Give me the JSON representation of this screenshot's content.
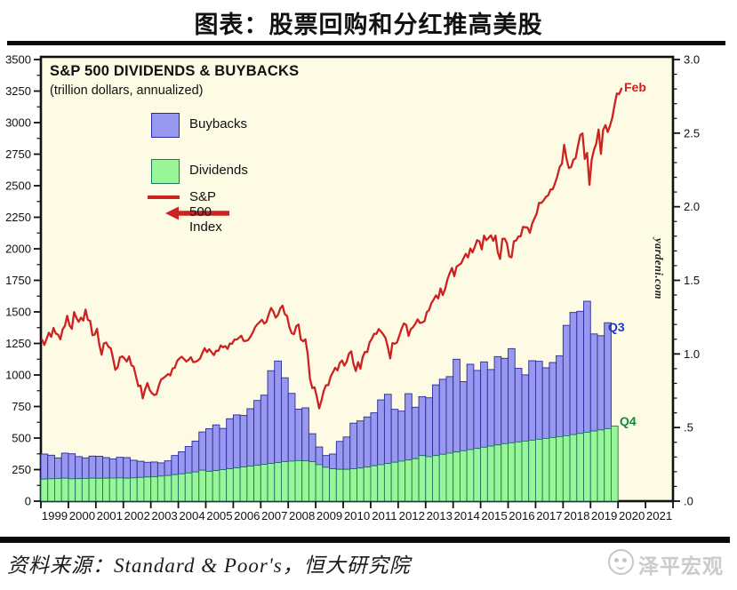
{
  "page": {
    "title": "图表：股票回购和分红推高美股",
    "source_line": "资料来源：Standard & Poor's，恒大研究院",
    "watermark": "泽平宏观"
  },
  "chart_data": {
    "type": "bar",
    "subtype": "stacked-bars-with-line",
    "title": "S&P 500 DIVIDENDS & BUYBACKS",
    "subtitle": "(trillion dollars, annualized)",
    "branding": "yardeni.com",
    "legend_position": "top-left-inside",
    "grid": false,
    "legend": [
      {
        "label": "Buybacks",
        "series": "buybacks"
      },
      {
        "label": "Dividends",
        "series": "dividends"
      },
      {
        "label": "S&P 500 Index",
        "series": "index"
      }
    ],
    "colors": {
      "plot_background": "#fdfbe3",
      "border": "#111111",
      "buybacks_fill": "#9898ee",
      "buybacks_stroke": "#2a2a9e",
      "dividends_fill": "#98f598",
      "dividends_stroke": "#1a7a5a",
      "index_line": "#cc2222",
      "q3_label": "#2233cc",
      "q4_label": "#0f8a3c",
      "axis_text": "#111111"
    },
    "left_axis": {
      "title": "S&P 500 Index",
      "range": [
        0,
        3500
      ],
      "ticks": [
        "3500",
        "3250",
        "3000",
        "2750",
        "2500",
        "2250",
        "2000",
        "1750",
        "1500",
        "1250",
        "1000",
        "750",
        "500",
        "250",
        "0"
      ],
      "minor_tick_step": 125
    },
    "right_axis": {
      "title": "trillion dollars, annualized",
      "range": [
        0,
        3.0
      ],
      "ticks": [
        "3.0",
        "2.5",
        "2.0",
        "1.5",
        "1.0",
        ".5",
        ".0"
      ],
      "minor_tick_step": 0.1
    },
    "x_axis": {
      "tick_years": [
        "1999",
        "2000",
        "2001",
        "2002",
        "2003",
        "2004",
        "2005",
        "2006",
        "2007",
        "2008",
        "2009",
        "2010",
        "2011",
        "2012",
        "2013",
        "2014",
        "2015",
        "2016",
        "2017",
        "2018",
        "2019",
        "2020",
        "2021"
      ]
    },
    "annotations": [
      {
        "text": "Feb",
        "color_key": "index_line"
      },
      {
        "text": "Q3",
        "color_key": "q3_label"
      },
      {
        "text": "Q4",
        "color_key": "q4_label"
      }
    ],
    "bars": {
      "frequency": "quarterly",
      "start": "1999Q1",
      "unit": "trillion dollars, annualized",
      "dividends": [
        0.15,
        0.152,
        0.154,
        0.156,
        0.152,
        0.153,
        0.154,
        0.156,
        0.155,
        0.156,
        0.157,
        0.158,
        0.156,
        0.158,
        0.161,
        0.164,
        0.166,
        0.17,
        0.174,
        0.18,
        0.185,
        0.191,
        0.198,
        0.21,
        0.202,
        0.208,
        0.214,
        0.22,
        0.226,
        0.232,
        0.238,
        0.244,
        0.25,
        0.256,
        0.262,
        0.268,
        0.272,
        0.275,
        0.274,
        0.268,
        0.248,
        0.23,
        0.22,
        0.216,
        0.216,
        0.22,
        0.225,
        0.232,
        0.24,
        0.248,
        0.256,
        0.264,
        0.272,
        0.28,
        0.288,
        0.31,
        0.302,
        0.31,
        0.318,
        0.326,
        0.334,
        0.342,
        0.35,
        0.358,
        0.366,
        0.374,
        0.382,
        0.39,
        0.396,
        0.402,
        0.408,
        0.414,
        0.42,
        0.426,
        0.432,
        0.438,
        0.444,
        0.452,
        0.46,
        0.468,
        0.476,
        0.484,
        0.492,
        0.51
      ],
      "buybacks": [
        0.17,
        0.16,
        0.14,
        0.17,
        0.17,
        0.15,
        0.14,
        0.15,
        0.15,
        0.14,
        0.13,
        0.14,
        0.14,
        0.12,
        0.11,
        0.1,
        0.1,
        0.09,
        0.1,
        0.13,
        0.15,
        0.18,
        0.21,
        0.26,
        0.29,
        0.31,
        0.28,
        0.34,
        0.36,
        0.35,
        0.39,
        0.44,
        0.47,
        0.63,
        0.69,
        0.57,
        0.46,
        0.35,
        0.36,
        0.19,
        0.12,
        0.08,
        0.1,
        0.19,
        0.22,
        0.31,
        0.32,
        0.34,
        0.36,
        0.44,
        0.47,
        0.36,
        0.34,
        0.45,
        0.35,
        0.4,
        0.4,
        0.48,
        0.51,
        0.52,
        0.63,
        0.47,
        0.58,
        0.53,
        0.58,
        0.52,
        0.6,
        0.58,
        0.64,
        0.5,
        0.45,
        0.54,
        0.53,
        0.48,
        0.51,
        0.55,
        0.75,
        0.83,
        0.83,
        0.89,
        0.66,
        0.64,
        0.72,
        null
      ]
    },
    "line": {
      "name": "S&P 500 Index",
      "frequency": "monthly",
      "start": "1999-01",
      "end": "2020-02",
      "values": [
        1280,
        1238,
        1286,
        1335,
        1302,
        1373,
        1329,
        1320,
        1283,
        1363,
        1389,
        1469,
        1394,
        1366,
        1499,
        1452,
        1421,
        1455,
        1431,
        1518,
        1437,
        1429,
        1315,
        1320,
        1366,
        1240,
        1160,
        1249,
        1256,
        1224,
        1211,
        1134,
        1041,
        1060,
        1139,
        1148,
        1130,
        1107,
        1147,
        1077,
        1067,
        990,
        911,
        916,
        815,
        886,
        936,
        880,
        856,
        841,
        848,
        917,
        964,
        975,
        990,
        1008,
        996,
        1051,
        1058,
        1112,
        1131,
        1145,
        1126,
        1107,
        1121,
        1141,
        1102,
        1104,
        1115,
        1130,
        1174,
        1212,
        1181,
        1204,
        1181,
        1157,
        1192,
        1191,
        1234,
        1220,
        1229,
        1207,
        1249,
        1248,
        1280,
        1281,
        1295,
        1311,
        1270,
        1270,
        1277,
        1304,
        1336,
        1378,
        1401,
        1418,
        1438,
        1407,
        1421,
        1482,
        1531,
        1503,
        1455,
        1474,
        1527,
        1549,
        1481,
        1468,
        1379,
        1331,
        1323,
        1386,
        1400,
        1280,
        1267,
        1283,
        1166,
        969,
        896,
        903,
        826,
        735,
        798,
        873,
        919,
        919,
        987,
        1021,
        1057,
        1036,
        1096,
        1115,
        1074,
        1104,
        1169,
        1187,
        1089,
        1031,
        1102,
        1049,
        1141,
        1183,
        1181,
        1258,
        1286,
        1327,
        1326,
        1364,
        1345,
        1321,
        1292,
        1219,
        1131,
        1253,
        1247,
        1258,
        1312,
        1366,
        1408,
        1398,
        1310,
        1362,
        1379,
        1407,
        1441,
        1412,
        1416,
        1426,
        1498,
        1515,
        1569,
        1598,
        1631,
        1606,
        1686,
        1633,
        1682,
        1757,
        1806,
        1848,
        1783,
        1859,
        1872,
        1884,
        1924,
        1960,
        1931,
        2003,
        1972,
        2018,
        2068,
        2059,
        1995,
        2105,
        2068,
        2086,
        2107,
        2063,
        2104,
        1972,
        1920,
        2079,
        2080,
        2044,
        1940,
        1932,
        2060,
        2065,
        2097,
        2099,
        2174,
        2171,
        2168,
        2126,
        2199,
        2239,
        2279,
        2364,
        2363,
        2384,
        2412,
        2423,
        2470,
        2472,
        2519,
        2575,
        2648,
        2674,
        2824,
        2714,
        2641,
        2648,
        2705,
        2718,
        2816,
        2902,
        2914,
        2712,
        2760,
        2507,
        2704,
        2784,
        2834,
        2946,
        2752,
        2942,
        2980,
        2926,
        2977,
        3038,
        3141,
        3231,
        3226,
        3270
      ]
    }
  }
}
